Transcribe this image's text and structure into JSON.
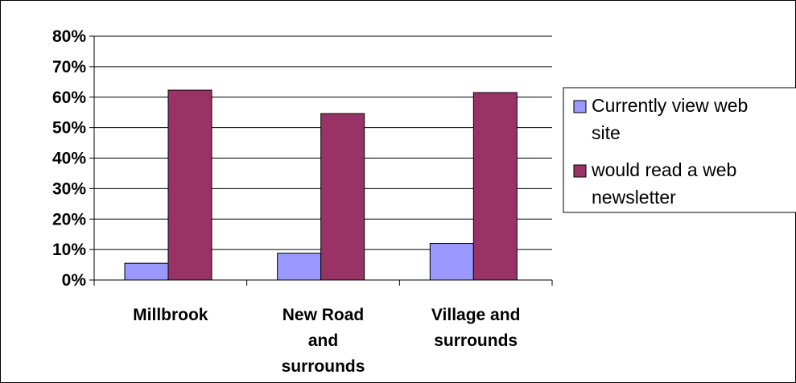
{
  "colors": {
    "series_1": "#9999ff",
    "series_2": "#993366",
    "gridline": "#000000",
    "background": "#ffffff"
  },
  "chart_data": {
    "type": "bar",
    "title": "",
    "xlabel": "",
    "ylabel": "",
    "categories": [
      [
        "Millbrook"
      ],
      [
        "New Road",
        "and",
        "surrounds"
      ],
      [
        "Village and",
        "surrounds"
      ]
    ],
    "series": [
      {
        "name": "Currently view web site",
        "legend_lines": [
          "Currently view web",
          "site"
        ],
        "values": [
          0.055,
          0.088,
          0.12
        ]
      },
      {
        "name": "would read a web newsletter",
        "legend_lines": [
          "would read a web",
          "newsletter"
        ],
        "values": [
          0.623,
          0.546,
          0.615
        ]
      }
    ],
    "ylim": [
      0,
      0.8
    ],
    "yticks": [
      0,
      0.1,
      0.2,
      0.3,
      0.4,
      0.5,
      0.6,
      0.7,
      0.8
    ],
    "ytick_labels": [
      "0%",
      "10%",
      "20%",
      "30%",
      "40%",
      "50%",
      "60%",
      "70%",
      "80%"
    ],
    "grid": true,
    "legend_position": "right"
  }
}
